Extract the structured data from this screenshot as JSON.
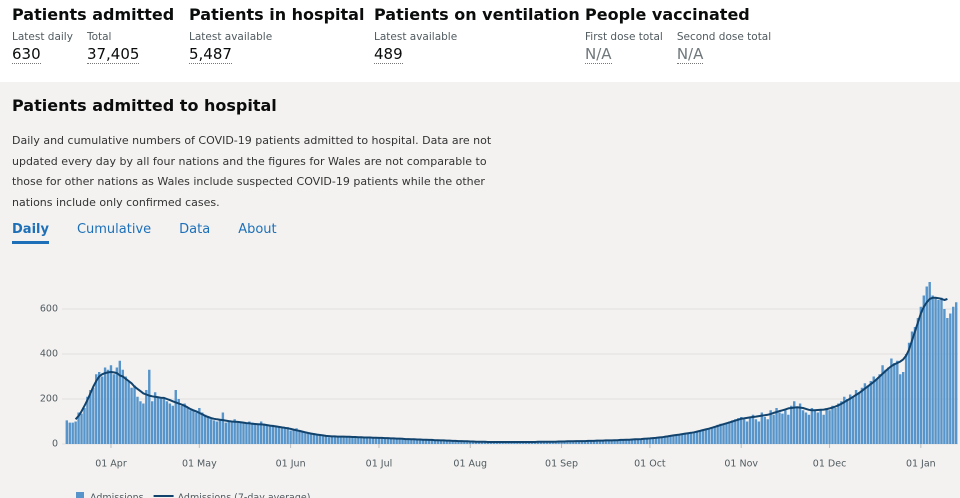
{
  "header": {
    "stats": [
      {
        "title": "Patients admitted",
        "items": [
          {
            "label": "Latest daily",
            "value": "630"
          },
          {
            "label": "Total",
            "value": "37,405"
          }
        ]
      },
      {
        "title": "Patients in hospital",
        "items": [
          {
            "label": "Latest available",
            "value": "5,487"
          }
        ]
      },
      {
        "title": "Patients on ventilation",
        "items": [
          {
            "label": "Latest available",
            "value": "489"
          }
        ]
      },
      {
        "title": "People vaccinated",
        "items": [
          {
            "label": "First dose total",
            "value": "N/A"
          },
          {
            "label": "Second dose total",
            "value": "N/A"
          }
        ]
      }
    ]
  },
  "card": {
    "title": "Patients admitted to hospital",
    "description": "Daily and cumulative numbers of COVID-19 patients admitted to hospital. Data are not updated every day by all four nations and the figures for Wales are not comparable to those for other nations as Wales include suspected COVID-19 patients while the other nations include only confirmed cases.",
    "tabs": [
      "Daily",
      "Cumulative",
      "Data",
      "About"
    ]
  },
  "chart_data": {
    "type": "bar",
    "categories": [
      null,
      null,
      null,
      null,
      null,
      null,
      null,
      null,
      null,
      null,
      null,
      null,
      null,
      null,
      null,
      "01 Apr",
      null,
      null,
      null,
      null,
      null,
      null,
      null,
      null,
      null,
      null,
      null,
      null,
      null,
      null,
      null,
      null,
      null,
      null,
      null,
      null,
      null,
      null,
      null,
      null,
      null,
      null,
      null,
      null,
      null,
      "01 May",
      null,
      null,
      null,
      null,
      null,
      null,
      null,
      null,
      null,
      null,
      null,
      null,
      null,
      null,
      null,
      null,
      null,
      null,
      null,
      null,
      null,
      null,
      null,
      null,
      null,
      null,
      null,
      null,
      null,
      null,
      "01 Jun",
      null,
      null,
      null,
      null,
      null,
      null,
      null,
      null,
      null,
      null,
      null,
      null,
      null,
      null,
      null,
      null,
      null,
      null,
      null,
      null,
      null,
      null,
      null,
      null,
      null,
      null,
      null,
      null,
      null,
      "01 Jul",
      null,
      null,
      null,
      null,
      null,
      null,
      null,
      null,
      null,
      null,
      null,
      null,
      null,
      null,
      null,
      null,
      null,
      null,
      null,
      null,
      null,
      null,
      null,
      null,
      null,
      null,
      null,
      null,
      null,
      null,
      "01 Aug",
      null,
      null,
      null,
      null,
      null,
      null,
      null,
      null,
      null,
      null,
      null,
      null,
      null,
      null,
      null,
      null,
      null,
      null,
      null,
      null,
      null,
      null,
      null,
      null,
      null,
      null,
      null,
      null,
      null,
      null,
      "01 Sep",
      null,
      null,
      null,
      null,
      null,
      null,
      null,
      null,
      null,
      null,
      null,
      null,
      null,
      null,
      null,
      null,
      null,
      null,
      null,
      null,
      null,
      null,
      null,
      null,
      null,
      null,
      null,
      null,
      null,
      "01 Oct",
      null,
      null,
      null,
      null,
      null,
      null,
      null,
      null,
      null,
      null,
      null,
      null,
      null,
      null,
      null,
      null,
      null,
      null,
      null,
      null,
      null,
      null,
      null,
      null,
      null,
      null,
      null,
      null,
      null,
      null,
      "01 Nov",
      null,
      null,
      null,
      null,
      null,
      null,
      null,
      null,
      null,
      null,
      null,
      null,
      null,
      null,
      null,
      null,
      null,
      null,
      null,
      null,
      null,
      null,
      null,
      null,
      null,
      null,
      null,
      null,
      null,
      "01 Dec",
      null,
      null,
      null,
      null,
      null,
      null,
      null,
      null,
      null,
      null,
      null,
      null,
      null,
      null,
      null,
      null,
      null,
      null,
      null,
      null,
      null,
      null,
      null,
      null,
      null,
      null,
      null,
      null,
      null,
      null,
      "01 Jan",
      null,
      null,
      null,
      null,
      null,
      null,
      null,
      null,
      null,
      null,
      null,
      null
    ],
    "series": [
      {
        "name": "Admissions",
        "color": "#5694ca",
        "values": [
          105,
          95,
          95,
          100,
          140,
          135,
          160,
          210,
          240,
          250,
          310,
          320,
          300,
          340,
          330,
          350,
          310,
          340,
          370,
          330,
          300,
          280,
          250,
          260,
          210,
          190,
          180,
          240,
          330,
          190,
          230,
          210,
          200,
          200,
          190,
          180,
          170,
          240,
          200,
          170,
          180,
          160,
          150,
          150,
          140,
          160,
          140,
          130,
          120,
          110,
          105,
          100,
          110,
          140,
          95,
          100,
          100,
          110,
          95,
          100,
          95,
          90,
          100,
          95,
          90,
          85,
          100,
          90,
          80,
          85,
          85,
          80,
          75,
          75,
          70,
          75,
          60,
          65,
          70,
          60,
          55,
          55,
          50,
          50,
          48,
          45,
          40,
          35,
          35,
          30,
          35,
          35,
          35,
          35,
          32,
          30,
          35,
          33,
          32,
          30,
          30,
          28,
          30,
          28,
          30,
          28,
          28,
          27,
          26,
          25,
          25,
          24,
          24,
          23,
          22,
          22,
          21,
          22,
          20,
          20,
          19,
          19,
          18,
          18,
          17,
          17,
          16,
          16,
          15,
          15,
          14,
          14,
          13,
          13,
          12,
          12,
          12,
          11,
          10,
          11,
          10,
          10,
          9,
          9,
          9,
          8,
          9,
          8,
          9,
          8,
          8,
          9,
          8,
          9,
          8,
          9,
          9,
          10,
          9,
          10,
          9,
          10,
          9,
          10,
          10,
          11,
          10,
          11,
          11,
          12,
          11,
          12,
          13,
          12,
          13,
          14,
          13,
          14,
          15,
          15,
          14,
          16,
          15,
          16,
          17,
          16,
          18,
          17,
          18,
          19,
          20,
          19,
          21,
          22,
          21,
          23,
          24,
          25,
          26,
          25,
          28,
          30,
          32,
          30,
          35,
          38,
          40,
          42,
          40,
          45,
          48,
          50,
          52,
          50,
          55,
          60,
          65,
          68,
          70,
          75,
          80,
          85,
          90,
          88,
          95,
          100,
          105,
          110,
          115,
          120,
          110,
          100,
          115,
          130,
          110,
          100,
          140,
          120,
          110,
          150,
          130,
          160,
          140,
          135,
          150,
          130,
          170,
          190,
          160,
          180,
          150,
          140,
          130,
          160,
          150,
          140,
          155,
          130,
          160,
          150,
          170,
          160,
          180,
          190,
          210,
          200,
          220,
          210,
          240,
          230,
          250,
          270,
          260,
          280,
          300,
          290,
          310,
          350,
          330,
          340,
          380,
          360,
          370,
          310,
          320,
          400,
          450,
          500,
          520,
          560,
          610,
          660,
          700,
          720,
          660,
          650,
          640,
          650,
          600,
          560,
          580,
          610,
          630
        ]
      },
      {
        "name": "Admissions (7-day average)",
        "color": "#12436d",
        "type": "line",
        "values": [
          null,
          null,
          null,
          110,
          125,
          145,
          170,
          195,
          225,
          255,
          280,
          300,
          310,
          315,
          318,
          320,
          318,
          315,
          305,
          300,
          290,
          280,
          270,
          255,
          245,
          235,
          225,
          220,
          215,
          212,
          210,
          208,
          205,
          205,
          200,
          195,
          190,
          185,
          180,
          175,
          170,
          163,
          155,
          150,
          145,
          138,
          132,
          125,
          120,
          115,
          112,
          110,
          108,
          106,
          104,
          102,
          100,
          99,
          98,
          97,
          95,
          93,
          92,
          90,
          89,
          88,
          87,
          86,
          84,
          82,
          80,
          78,
          76,
          74,
          72,
          70,
          67,
          64,
          61,
          58,
          55,
          52,
          49,
          46,
          44,
          42,
          40,
          38,
          36,
          35,
          34,
          34,
          33,
          33,
          33,
          32,
          32,
          31,
          31,
          30,
          30,
          29,
          29,
          29,
          28,
          28,
          27,
          27,
          26,
          26,
          25,
          25,
          24,
          24,
          23,
          22,
          22,
          21,
          21,
          20,
          20,
          19,
          19,
          18,
          18,
          17,
          17,
          16,
          16,
          15,
          15,
          14,
          14,
          13,
          13,
          12,
          12,
          11,
          11,
          10,
          10,
          10,
          10,
          9,
          9,
          9,
          9,
          9,
          9,
          9,
          9,
          9,
          9,
          9,
          9,
          9,
          9,
          9,
          9,
          9,
          10,
          10,
          10,
          10,
          10,
          10,
          10,
          11,
          11,
          11,
          12,
          12,
          12,
          13,
          13,
          13,
          13,
          14,
          14,
          14,
          15,
          15,
          15,
          16,
          16,
          16,
          17,
          17,
          18,
          18,
          19,
          19,
          20,
          21,
          21,
          22,
          23,
          24,
          25,
          26,
          27,
          29,
          30,
          32,
          34,
          36,
          38,
          40,
          42,
          44,
          46,
          48,
          50,
          52,
          55,
          58,
          62,
          65,
          68,
          72,
          76,
          80,
          84,
          88,
          92,
          96,
          100,
          104,
          108,
          112,
          114,
          116,
          118,
          120,
          122,
          124,
          126,
          128,
          130,
          134,
          138,
          142,
          146,
          150,
          154,
          158,
          160,
          162,
          163,
          162,
          160,
          156,
          152,
          150,
          150,
          151,
          152,
          153,
          155,
          158,
          162,
          166,
          172,
          178,
          186,
          194,
          202,
          210,
          218,
          226,
          236,
          246,
          256,
          266,
          276,
          288,
          300,
          312,
          324,
          336,
          346,
          354,
          360,
          366,
          376,
          392,
          420,
          460,
          500,
          540,
          580,
          610,
          630,
          645,
          650,
          650,
          648,
          645,
          640,
          645,
          null,
          null,
          null
        ]
      }
    ],
    "ylim": [
      0,
      700
    ],
    "yticks": [
      0,
      200,
      400,
      600
    ],
    "grid": true
  }
}
